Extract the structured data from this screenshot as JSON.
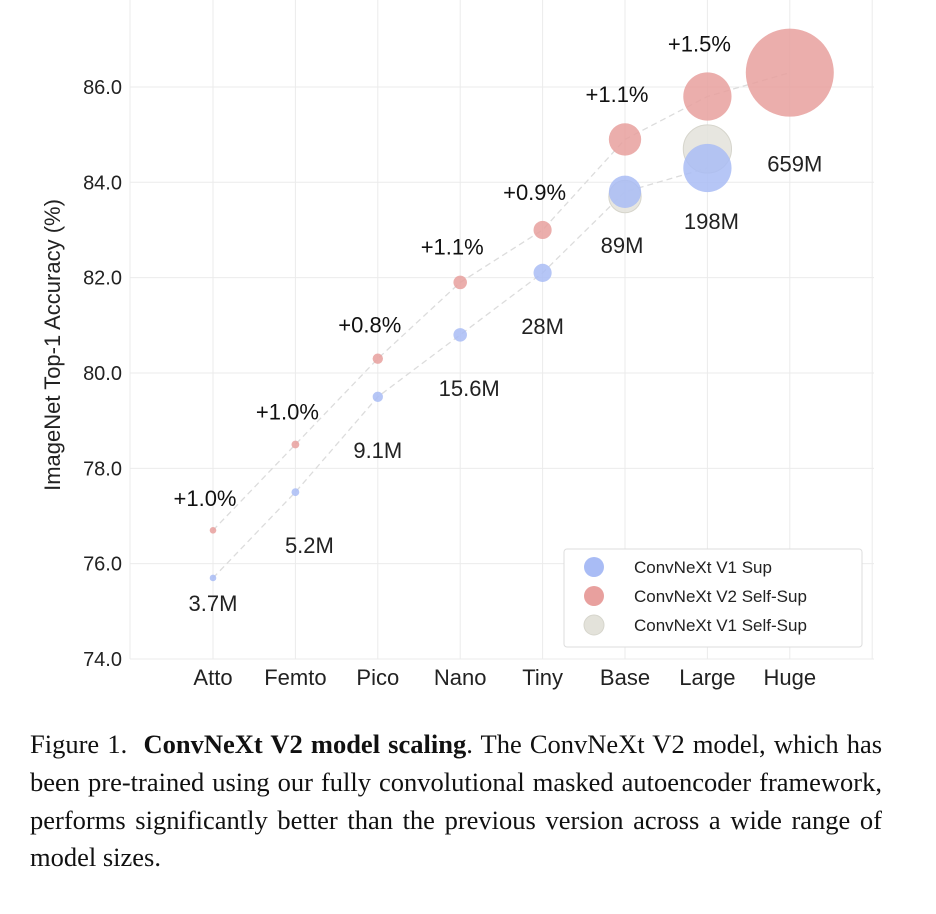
{
  "chart_data": {
    "type": "scatter",
    "ylabel": "ImageNet Top-1 Accuracy (%)",
    "xlabel": "",
    "categories": [
      "Atto",
      "Femto",
      "Pico",
      "Nano",
      "Tiny",
      "Base",
      "Large",
      "Huge"
    ],
    "ylim": [
      74.0,
      87.2
    ],
    "yticks": [
      "74.0",
      "76.0",
      "78.0",
      "80.0",
      "82.0",
      "84.0",
      "86.0"
    ],
    "grid": true,
    "legend_position": "bottom-right",
    "bubble_size_encodes": "parameters",
    "params": [
      "3.7M",
      "5.2M",
      "9.1M",
      "15.6M",
      "28M",
      "89M",
      "198M",
      "659M"
    ],
    "params_millions": [
      3.7,
      5.2,
      9.1,
      15.6,
      28,
      89,
      198,
      659
    ],
    "improvements": [
      "+1.0%",
      "+1.0%",
      "+0.8%",
      "+1.1%",
      "+0.9%",
      "+1.1%",
      "+1.5%",
      ""
    ],
    "series": [
      {
        "name": "ConvNeXt V1 Sup",
        "color": "#a9bcf5",
        "values": [
          75.7,
          77.5,
          79.5,
          80.8,
          82.1,
          83.8,
          84.3,
          null
        ]
      },
      {
        "name": "ConvNeXt V2 Self-Sup",
        "color": "#e8a09e",
        "values": [
          76.7,
          78.5,
          80.3,
          81.9,
          83.0,
          84.9,
          85.8,
          86.3
        ]
      },
      {
        "name": "ConvNeXt V1 Self-Sup",
        "color": "#e3e2da",
        "values": [
          null,
          null,
          null,
          null,
          null,
          83.7,
          84.7,
          null
        ]
      }
    ]
  },
  "caption": {
    "label": "Figure 1.",
    "title": "ConvNeXt V2 model scaling",
    "text": ". The ConvNeXt V2 model, which has been pre-trained using our fully convolutional masked autoencoder framework, performs significantly better than the previous version across a wide range of model sizes."
  }
}
